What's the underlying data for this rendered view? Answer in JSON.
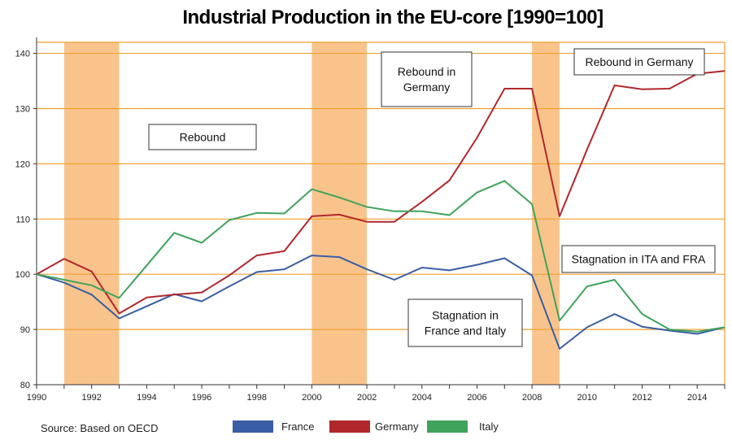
{
  "chart_data": {
    "type": "line",
    "title": "Industrial Production in the EU-core [1990=100]",
    "xlabel": "",
    "ylabel": "",
    "xlim": [
      1990,
      2015
    ],
    "ylim": [
      80,
      142
    ],
    "x_ticks": [
      1990,
      1992,
      1994,
      1996,
      1998,
      2000,
      2002,
      2004,
      2006,
      2008,
      2010,
      2012,
      2014
    ],
    "y_ticks": [
      80,
      90,
      100,
      110,
      120,
      130,
      140
    ],
    "grid": true,
    "legend_position": "bottom",
    "shaded_periods": [
      [
        1991,
        1993
      ],
      [
        2000,
        2002
      ],
      [
        2008,
        2009
      ]
    ],
    "x": [
      1990,
      1991,
      1992,
      1993,
      1994,
      1995,
      1996,
      1997,
      1998,
      1999,
      2000,
      2001,
      2002,
      2003,
      2004,
      2005,
      2006,
      2007,
      2008,
      2009,
      2010,
      2011,
      2012,
      2013,
      2014,
      2015
    ],
    "series": [
      {
        "name": "France",
        "color": "#3a5ea4",
        "values": [
          100,
          98.5,
          96.3,
          92,
          94.2,
          96.4,
          95.1,
          97.8,
          100.4,
          100.9,
          103.4,
          103.1,
          100.9,
          99,
          101.2,
          100.7,
          101.7,
          102.9,
          99.8,
          86.5,
          90.4,
          92.8,
          90.5,
          89.8,
          89.2,
          90.4
        ]
      },
      {
        "name": "Germany",
        "color": "#b0282c",
        "values": [
          100,
          102.8,
          100.5,
          92.9,
          95.8,
          96.3,
          96.7,
          99.8,
          103.4,
          104.2,
          110.5,
          110.8,
          109.5,
          109.5,
          113.1,
          117,
          124.7,
          133.6,
          133.6,
          110.5,
          122.6,
          134.2,
          133.5,
          133.6,
          136.3,
          136.8
        ]
      },
      {
        "name": "Italy",
        "color": "#3fa35b",
        "values": [
          100,
          99,
          98,
          95.7,
          101.6,
          107.5,
          105.7,
          109.8,
          111.1,
          111,
          115.4,
          113.9,
          112.2,
          111.4,
          111.4,
          110.7,
          114.8,
          116.9,
          112.7,
          91.6,
          97.8,
          99,
          92.8,
          90,
          89.6,
          90.4
        ]
      }
    ],
    "annotations": [
      {
        "text": "Rebound",
        "lines": [
          "Rebound"
        ]
      },
      {
        "text": "Rebound in Germany",
        "lines": [
          "Rebound in",
          "Germany"
        ]
      },
      {
        "text": "Rebound in Germany",
        "lines": [
          "Rebound in Germany"
        ]
      },
      {
        "text": "Stagnation in ITA and FRA",
        "lines": [
          "Stagnation in ITA and FRA"
        ]
      },
      {
        "text": "Stagnation in France and Italy",
        "lines": [
          "Stagnation in",
          "France and Italy"
        ]
      }
    ],
    "source": "Source: Based on OECD"
  },
  "colors": {
    "grid": "#f0a030",
    "shade": "#f9c48c",
    "axis": "#333333"
  }
}
